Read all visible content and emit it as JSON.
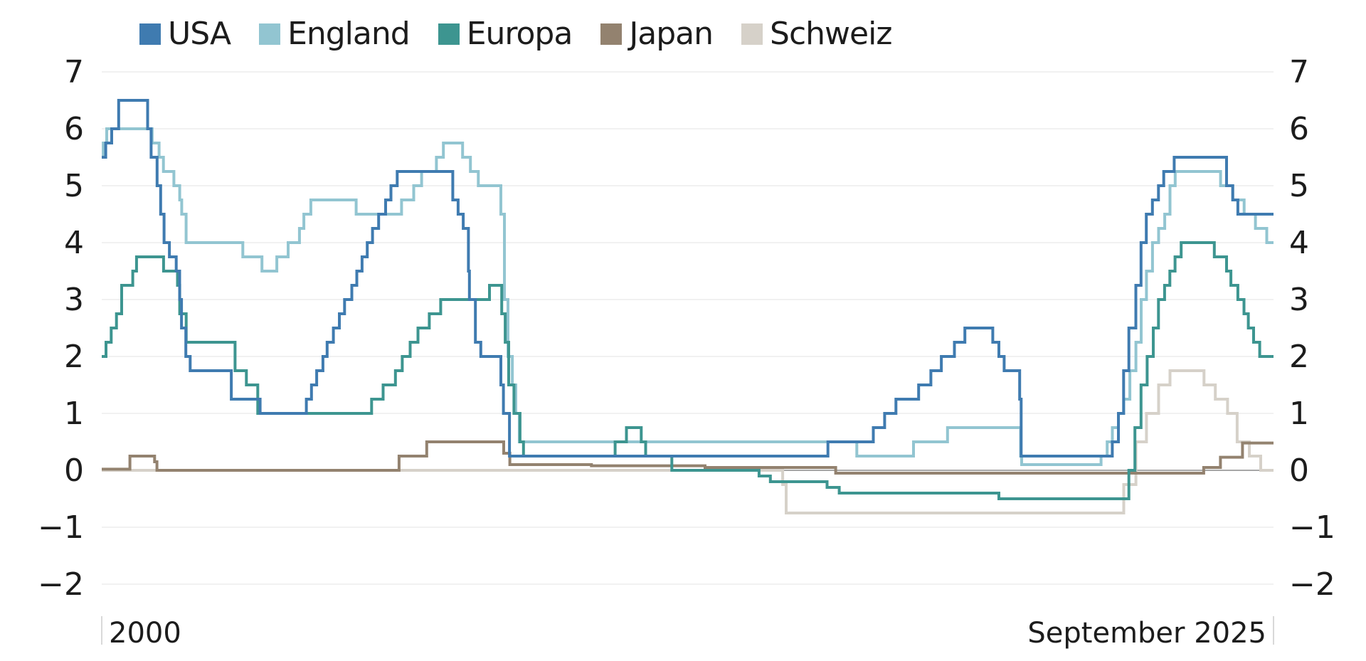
{
  "chart_data": {
    "type": "line",
    "step": true,
    "x_start_label": "2000",
    "x_end_label": "September 2025",
    "ylim": [
      -2,
      7
    ],
    "yticks": [
      "7",
      "6",
      "5",
      "4",
      "3",
      "2",
      "1",
      "0",
      "−1",
      "−2"
    ],
    "ytick_values": [
      7,
      6,
      5,
      4,
      3,
      2,
      1,
      0,
      -1,
      -2
    ],
    "secondary_axis": true,
    "grid": true,
    "legend_position": "top",
    "series": [
      {
        "name": "USA",
        "color": "#3f7bb0",
        "points": [
          [
            "2000-01-01",
            5.5
          ],
          [
            "2000-02-02",
            5.75
          ],
          [
            "2000-03-21",
            6.0
          ],
          [
            "2000-05-16",
            6.5
          ],
          [
            "2001-01-03",
            6.0
          ],
          [
            "2001-01-31",
            5.5
          ],
          [
            "2001-03-20",
            5.0
          ],
          [
            "2001-04-18",
            4.5
          ],
          [
            "2001-05-15",
            4.0
          ],
          [
            "2001-06-27",
            3.75
          ],
          [
            "2001-08-21",
            3.5
          ],
          [
            "2001-09-17",
            3.0
          ],
          [
            "2001-10-02",
            2.5
          ],
          [
            "2001-11-06",
            2.0
          ],
          [
            "2001-12-11",
            1.75
          ],
          [
            "2002-11-06",
            1.25
          ],
          [
            "2003-06-25",
            1.0
          ],
          [
            "2004-06-30",
            1.25
          ],
          [
            "2004-08-10",
            1.5
          ],
          [
            "2004-09-21",
            1.75
          ],
          [
            "2004-11-10",
            2.0
          ],
          [
            "2004-12-14",
            2.25
          ],
          [
            "2005-02-02",
            2.5
          ],
          [
            "2005-03-22",
            2.75
          ],
          [
            "2005-05-03",
            3.0
          ],
          [
            "2005-06-30",
            3.25
          ],
          [
            "2005-08-09",
            3.5
          ],
          [
            "2005-09-20",
            3.75
          ],
          [
            "2005-11-01",
            4.0
          ],
          [
            "2005-12-13",
            4.25
          ],
          [
            "2006-01-31",
            4.5
          ],
          [
            "2006-03-28",
            4.75
          ],
          [
            "2006-05-10",
            5.0
          ],
          [
            "2006-06-29",
            5.25
          ],
          [
            "2007-09-18",
            4.75
          ],
          [
            "2007-10-31",
            4.5
          ],
          [
            "2007-12-11",
            4.25
          ],
          [
            "2008-01-22",
            3.5
          ],
          [
            "2008-01-30",
            3.0
          ],
          [
            "2008-03-18",
            2.25
          ],
          [
            "2008-04-30",
            2.0
          ],
          [
            "2008-10-08",
            1.5
          ],
          [
            "2008-10-29",
            1.0
          ],
          [
            "2008-12-16",
            0.25
          ],
          [
            "2015-12-16",
            0.5
          ],
          [
            "2016-12-14",
            0.75
          ],
          [
            "2017-03-15",
            1.0
          ],
          [
            "2017-06-14",
            1.25
          ],
          [
            "2017-12-13",
            1.5
          ],
          [
            "2018-03-21",
            1.75
          ],
          [
            "2018-06-13",
            2.0
          ],
          [
            "2018-09-26",
            2.25
          ],
          [
            "2018-12-19",
            2.5
          ],
          [
            "2019-07-31",
            2.25
          ],
          [
            "2019-09-18",
            2.0
          ],
          [
            "2019-10-30",
            1.75
          ],
          [
            "2020-03-03",
            1.25
          ],
          [
            "2020-03-15",
            0.25
          ],
          [
            "2022-03-16",
            0.5
          ],
          [
            "2022-05-04",
            1.0
          ],
          [
            "2022-06-15",
            1.75
          ],
          [
            "2022-07-27",
            2.5
          ],
          [
            "2022-09-21",
            3.25
          ],
          [
            "2022-11-02",
            4.0
          ],
          [
            "2022-12-14",
            4.5
          ],
          [
            "2023-02-01",
            4.75
          ],
          [
            "2023-03-22",
            5.0
          ],
          [
            "2023-05-03",
            5.25
          ],
          [
            "2023-07-26",
            5.5
          ],
          [
            "2024-09-18",
            5.0
          ],
          [
            "2024-11-07",
            4.75
          ],
          [
            "2024-12-18",
            4.5
          ],
          [
            "2025-09-30",
            4.5
          ]
        ]
      },
      {
        "name": "England",
        "color": "#92c5d1",
        "points": [
          [
            "2000-01-01",
            5.5
          ],
          [
            "2000-01-13",
            5.75
          ],
          [
            "2000-02-10",
            6.0
          ],
          [
            "2001-02-08",
            5.75
          ],
          [
            "2001-04-05",
            5.5
          ],
          [
            "2001-05-10",
            5.25
          ],
          [
            "2001-08-02",
            5.0
          ],
          [
            "2001-09-18",
            4.75
          ],
          [
            "2001-10-04",
            4.5
          ],
          [
            "2001-11-08",
            4.0
          ],
          [
            "2003-02-06",
            3.75
          ],
          [
            "2003-07-10",
            3.5
          ],
          [
            "2003-11-06",
            3.75
          ],
          [
            "2004-02-05",
            4.0
          ],
          [
            "2004-05-06",
            4.25
          ],
          [
            "2004-06-10",
            4.5
          ],
          [
            "2004-08-05",
            4.75
          ],
          [
            "2005-08-04",
            4.5
          ],
          [
            "2006-08-03",
            4.75
          ],
          [
            "2006-11-09",
            5.0
          ],
          [
            "2007-01-11",
            5.25
          ],
          [
            "2007-05-10",
            5.5
          ],
          [
            "2007-07-05",
            5.75
          ],
          [
            "2007-12-06",
            5.5
          ],
          [
            "2008-02-07",
            5.25
          ],
          [
            "2008-04-10",
            5.0
          ],
          [
            "2008-10-08",
            4.5
          ],
          [
            "2008-11-06",
            3.0
          ],
          [
            "2008-12-04",
            2.0
          ],
          [
            "2009-01-08",
            1.5
          ],
          [
            "2009-02-05",
            1.0
          ],
          [
            "2009-03-05",
            0.5
          ],
          [
            "2016-08-04",
            0.25
          ],
          [
            "2017-11-02",
            0.5
          ],
          [
            "2018-08-02",
            0.75
          ],
          [
            "2020-03-11",
            0.25
          ],
          [
            "2020-03-19",
            0.1
          ],
          [
            "2021-12-16",
            0.25
          ],
          [
            "2022-02-03",
            0.5
          ],
          [
            "2022-03-17",
            0.75
          ],
          [
            "2022-05-05",
            1.0
          ],
          [
            "2022-06-16",
            1.25
          ],
          [
            "2022-08-04",
            1.75
          ],
          [
            "2022-09-22",
            2.25
          ],
          [
            "2022-11-03",
            3.0
          ],
          [
            "2022-12-15",
            3.5
          ],
          [
            "2023-02-02",
            4.0
          ],
          [
            "2023-03-23",
            4.25
          ],
          [
            "2023-05-11",
            4.5
          ],
          [
            "2023-06-22",
            5.0
          ],
          [
            "2023-08-03",
            5.25
          ],
          [
            "2024-08-01",
            5.0
          ],
          [
            "2024-11-07",
            4.75
          ],
          [
            "2025-02-06",
            4.5
          ],
          [
            "2025-05-08",
            4.25
          ],
          [
            "2025-08-07",
            4.0
          ],
          [
            "2025-09-30",
            4.0
          ]
        ]
      },
      {
        "name": "Europa",
        "color": "#3d9590",
        "points": [
          [
            "2000-01-01",
            2.0
          ],
          [
            "2000-02-04",
            2.25
          ],
          [
            "2000-03-17",
            2.5
          ],
          [
            "2000-04-28",
            2.75
          ],
          [
            "2000-06-09",
            3.25
          ],
          [
            "2000-09-06",
            3.5
          ],
          [
            "2000-10-06",
            3.75
          ],
          [
            "2001-05-11",
            3.5
          ],
          [
            "2001-08-31",
            3.25
          ],
          [
            "2001-09-18",
            2.75
          ],
          [
            "2001-11-09",
            2.25
          ],
          [
            "2002-12-06",
            1.75
          ],
          [
            "2003-03-07",
            1.5
          ],
          [
            "2003-06-06",
            1.0
          ],
          [
            "2005-12-06",
            1.25
          ],
          [
            "2006-03-08",
            1.5
          ],
          [
            "2006-06-15",
            1.75
          ],
          [
            "2006-08-09",
            2.0
          ],
          [
            "2006-10-11",
            2.25
          ],
          [
            "2006-12-13",
            2.5
          ],
          [
            "2007-03-14",
            2.75
          ],
          [
            "2007-06-13",
            3.0
          ],
          [
            "2008-07-09",
            3.25
          ],
          [
            "2008-10-15",
            2.75
          ],
          [
            "2008-11-12",
            2.25
          ],
          [
            "2008-12-10",
            1.5
          ],
          [
            "2009-01-21",
            1.0
          ],
          [
            "2009-03-11",
            0.5
          ],
          [
            "2009-04-08",
            0.25
          ],
          [
            "2011-04-13",
            0.5
          ],
          [
            "2011-07-13",
            0.75
          ],
          [
            "2011-11-09",
            0.5
          ],
          [
            "2011-12-14",
            0.25
          ],
          [
            "2012-07-11",
            0.0
          ],
          [
            "2014-06-11",
            -0.1
          ],
          [
            "2014-09-10",
            -0.2
          ],
          [
            "2015-12-09",
            -0.3
          ],
          [
            "2016-03-16",
            -0.4
          ],
          [
            "2019-09-18",
            -0.5
          ],
          [
            "2022-07-27",
            0.0
          ],
          [
            "2022-09-14",
            0.75
          ],
          [
            "2022-11-02",
            1.5
          ],
          [
            "2022-12-21",
            2.0
          ],
          [
            "2023-02-08",
            2.5
          ],
          [
            "2023-03-22",
            3.0
          ],
          [
            "2023-05-10",
            3.25
          ],
          [
            "2023-06-21",
            3.5
          ],
          [
            "2023-08-02",
            3.75
          ],
          [
            "2023-09-20",
            4.0
          ],
          [
            "2024-06-12",
            3.75
          ],
          [
            "2024-09-18",
            3.5
          ],
          [
            "2024-10-23",
            3.25
          ],
          [
            "2024-12-18",
            3.0
          ],
          [
            "2025-02-05",
            2.75
          ],
          [
            "2025-03-12",
            2.5
          ],
          [
            "2025-04-23",
            2.25
          ],
          [
            "2025-06-11",
            2.0
          ],
          [
            "2025-09-30",
            2.0
          ]
        ]
      },
      {
        "name": "Japan",
        "color": "#93826f",
        "points": [
          [
            "2000-01-01",
            0.02
          ],
          [
            "2000-08-14",
            0.25
          ],
          [
            "2001-02-28",
            0.15
          ],
          [
            "2001-03-19",
            0.0
          ],
          [
            "2006-07-14",
            0.25
          ],
          [
            "2007-02-21",
            0.5
          ],
          [
            "2008-10-31",
            0.3
          ],
          [
            "2008-12-19",
            0.1
          ],
          [
            "2010-10-05",
            0.08
          ],
          [
            "2013-04-04",
            0.05
          ],
          [
            "2016-02-16",
            -0.05
          ],
          [
            "2024-03-19",
            0.05
          ],
          [
            "2024-07-31",
            0.23
          ],
          [
            "2025-01-24",
            0.48
          ],
          [
            "2025-09-30",
            0.48
          ]
        ]
      },
      {
        "name": "Schweiz",
        "color": "#d6d1c9",
        "points": [
          [
            "2000-01-01",
            0.0
          ],
          [
            "2014-12-18",
            -0.25
          ],
          [
            "2015-01-15",
            -0.75
          ],
          [
            "2022-06-16",
            -0.25
          ],
          [
            "2022-09-22",
            0.5
          ],
          [
            "2022-12-15",
            1.0
          ],
          [
            "2023-03-23",
            1.5
          ],
          [
            "2023-06-22",
            1.75
          ],
          [
            "2024-03-21",
            1.5
          ],
          [
            "2024-06-20",
            1.25
          ],
          [
            "2024-09-26",
            1.0
          ],
          [
            "2024-12-12",
            0.5
          ],
          [
            "2025-03-20",
            0.25
          ],
          [
            "2025-06-19",
            0.0
          ],
          [
            "2025-09-30",
            0.0
          ]
        ]
      }
    ]
  }
}
